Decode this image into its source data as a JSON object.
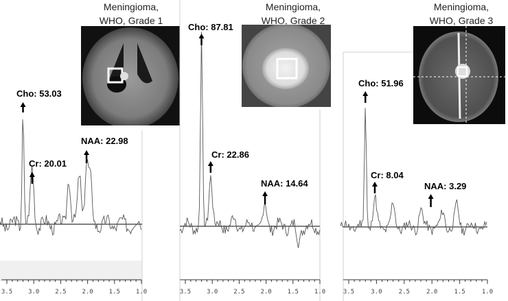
{
  "chart_data": [
    {
      "type": "line",
      "title_line1": "Meningioma,",
      "title_line2": "WHO, Grade 1",
      "xlim": [
        3.7,
        1.0
      ],
      "x_ticks": [
        "3.5",
        "3.0",
        "2.5",
        "2.0",
        "1.5",
        "1.0"
      ],
      "peaks": [
        {
          "label": "Cho: 53.03",
          "ppm": 3.2
        },
        {
          "label": "Cr: 20.01",
          "ppm": 3.03
        },
        {
          "label": "NAA: 22.98",
          "ppm": 2.02
        }
      ]
    },
    {
      "type": "line",
      "title_line1": "Meningioma,",
      "title_line2": "WHO, Grade 2",
      "xlim": [
        3.7,
        1.0
      ],
      "x_ticks": [
        "3.5",
        "3.0",
        "2.5",
        "2.0",
        "1.5",
        "1.0"
      ],
      "peaks": [
        {
          "label": "Cho: 87.81",
          "ppm": 3.2
        },
        {
          "label": "Cr: 22.86",
          "ppm": 3.03
        },
        {
          "label": "NAA: 14.64",
          "ppm": 2.02
        }
      ]
    },
    {
      "type": "line",
      "title_line1": "Meningioma,",
      "title_line2": "WHO, Grade 3",
      "xlim": [
        3.7,
        1.0
      ],
      "x_ticks": [
        "3.5",
        "3.0",
        "2.5",
        "2.0",
        "1.5",
        "1.0"
      ],
      "peaks": [
        {
          "label": "Cho: 51.96",
          "ppm": 3.2
        },
        {
          "label": "Cr: 8.04",
          "ppm": 3.03
        },
        {
          "label": "NAA: 3.29",
          "ppm": 2.02
        }
      ]
    }
  ]
}
